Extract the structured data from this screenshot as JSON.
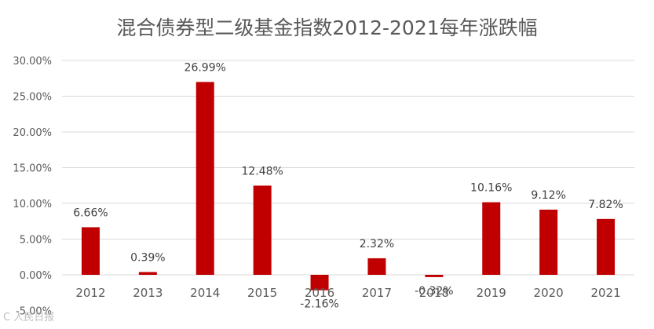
{
  "chart_data": {
    "type": "bar",
    "title": "混合债券型二级基金指数2012-2021每年涨跌幅",
    "categories": [
      "2012",
      "2013",
      "2014",
      "2015",
      "2016",
      "2017",
      "2018",
      "2019",
      "2020",
      "2021"
    ],
    "values": [
      6.66,
      0.39,
      26.99,
      12.48,
      -2.16,
      2.32,
      -0.32,
      10.16,
      9.12,
      7.82
    ],
    "data_labels": [
      "6.66%",
      "0.39%",
      "26.99%",
      "12.48%",
      "-2.16%",
      "2.32%",
      "-0.32%",
      "10.16%",
      "9.12%",
      "7.82%"
    ],
    "y_ticks": [
      -5,
      0,
      5,
      10,
      15,
      20,
      25,
      30
    ],
    "y_tick_labels": [
      "-5.00%",
      "0.00%",
      "5.00%",
      "10.00%",
      "15.00%",
      "20.00%",
      "25.00%",
      "30.00%"
    ],
    "ylim": [
      -5,
      30
    ],
    "grid": true,
    "bar_color": "#c00000",
    "xlabel": "",
    "ylabel": ""
  },
  "watermark": "C 人民日报"
}
